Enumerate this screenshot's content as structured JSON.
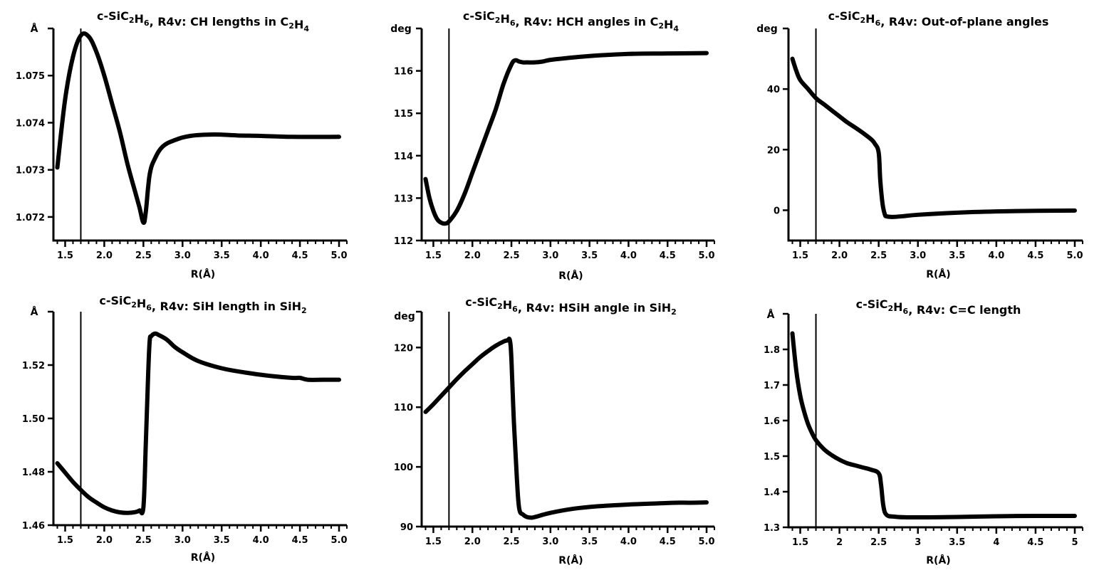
{
  "chart_data": [
    {
      "type": "line",
      "title": "c-SiC2H6, R4v: CH lengths in C2H4",
      "title_parts": [
        {
          "t": "c-SiC"
        },
        {
          "t": "2",
          "s": "sub"
        },
        {
          "t": "H"
        },
        {
          "t": "6",
          "s": "sub"
        },
        {
          "t": ", R4v: CH lengths in C"
        },
        {
          "t": "2",
          "s": "sub"
        },
        {
          "t": "H"
        },
        {
          "t": "4",
          "s": "sub"
        }
      ],
      "xlabel": "R(Å)",
      "ylabel": "Å",
      "xlim": [
        1.35,
        5.1
      ],
      "ylim": [
        1.0715,
        1.076
      ],
      "xticks": [
        1.5,
        2.0,
        2.5,
        3.0,
        3.5,
        4.0,
        4.5,
        5.0
      ],
      "xtick_labels": [
        "1.5",
        "2.0",
        "2.5",
        "3.0",
        "3.5",
        "4.0",
        "4.5",
        "5.0"
      ],
      "xminor": 0.1,
      "yticks": [
        1.072,
        1.073,
        1.074,
        1.075
      ],
      "ytick_labels": [
        "1.072",
        "1.073",
        "1.074",
        "1.075"
      ],
      "vline_x": 1.7,
      "series": [
        {
          "name": "CH length",
          "x": [
            1.4,
            1.5,
            1.6,
            1.7,
            1.8,
            1.9,
            2.0,
            2.1,
            2.2,
            2.3,
            2.4,
            2.45,
            2.5,
            2.53,
            2.58,
            2.65,
            2.75,
            2.9,
            3.1,
            3.4,
            3.7,
            4.0,
            4.4,
            5.0
          ],
          "y": [
            1.07305,
            1.0745,
            1.0754,
            1.07585,
            1.07583,
            1.0755,
            1.075,
            1.0744,
            1.0738,
            1.0731,
            1.0725,
            1.0722,
            1.07188,
            1.0721,
            1.0729,
            1.07325,
            1.0735,
            1.07363,
            1.07372,
            1.07375,
            1.07373,
            1.07372,
            1.0737,
            1.0737
          ]
        }
      ]
    },
    {
      "type": "line",
      "title": "c-SiC2H6, R4v: HCH angles in C2H4",
      "title_parts": [
        {
          "t": "c-SiC"
        },
        {
          "t": "2",
          "s": "sub"
        },
        {
          "t": "H"
        },
        {
          "t": "6",
          "s": "sub"
        },
        {
          "t": ", R4v: HCH angles in C"
        },
        {
          "t": "2",
          "s": "sub"
        },
        {
          "t": "H"
        },
        {
          "t": "4",
          "s": "sub"
        }
      ],
      "xlabel": "R(Å)",
      "ylabel": "deg",
      "xlim": [
        1.35,
        5.1
      ],
      "ylim": [
        112,
        117
      ],
      "xticks": [
        1.5,
        2.0,
        2.5,
        3.0,
        3.5,
        4.0,
        4.5,
        5.0
      ],
      "xtick_labels": [
        "1.5",
        "2.0",
        "2.5",
        "3.0",
        "3.5",
        "4.0",
        "4.5",
        "5.0"
      ],
      "xminor": 0.1,
      "yticks": [
        112,
        113,
        114,
        115,
        116
      ],
      "ytick_labels": [
        "112",
        "113",
        "114",
        "115",
        "116"
      ],
      "vline_x": 1.7,
      "series": [
        {
          "name": "HCH angle",
          "x": [
            1.4,
            1.45,
            1.5,
            1.55,
            1.6,
            1.65,
            1.7,
            1.8,
            1.9,
            2.0,
            2.1,
            2.2,
            2.3,
            2.4,
            2.5,
            2.55,
            2.6,
            2.65,
            2.7,
            2.8,
            2.9,
            3.0,
            3.2,
            3.5,
            4.0,
            4.5,
            5.0
          ],
          "y": [
            113.45,
            113.0,
            112.7,
            112.5,
            112.42,
            112.4,
            112.45,
            112.7,
            113.1,
            113.6,
            114.1,
            114.6,
            115.1,
            115.7,
            116.15,
            116.25,
            116.22,
            116.2,
            116.2,
            116.2,
            116.22,
            116.26,
            116.3,
            116.35,
            116.4,
            116.41,
            116.42
          ]
        }
      ]
    },
    {
      "type": "line",
      "title": "c-SiC2H6, R4v: Out-of-plane angles",
      "title_parts": [
        {
          "t": "c-SiC"
        },
        {
          "t": "2",
          "s": "sub"
        },
        {
          "t": "H"
        },
        {
          "t": "6",
          "s": "sub"
        },
        {
          "t": ", R4v: Out-of-plane angles"
        }
      ],
      "xlabel": "R(Å)",
      "ylabel": "deg",
      "xlim": [
        1.35,
        5.1
      ],
      "ylim": [
        -10,
        60
      ],
      "xticks": [
        1.5,
        2.0,
        2.5,
        3.0,
        3.5,
        4.0,
        4.5,
        5.0
      ],
      "xtick_labels": [
        "1.5",
        "2.0",
        "2.5",
        "3.0",
        "3.5",
        "4.0",
        "4.5",
        "5.0"
      ],
      "xminor": 0.1,
      "yticks": [
        0,
        20,
        40
      ],
      "ytick_labels": [
        "0",
        "20",
        "40"
      ],
      "vline_x": 1.7,
      "series": [
        {
          "name": "Out-of-plane angle",
          "x": [
            1.4,
            1.45,
            1.5,
            1.6,
            1.7,
            1.8,
            1.9,
            2.0,
            2.1,
            2.2,
            2.3,
            2.4,
            2.45,
            2.5,
            2.52,
            2.55,
            2.58,
            2.6,
            2.65,
            2.7,
            2.8,
            3.0,
            3.5,
            4.0,
            4.5,
            5.0
          ],
          "y": [
            50,
            46,
            43,
            40,
            37,
            35,
            33,
            31,
            29,
            27.3,
            25.5,
            23.5,
            22,
            19,
            10,
            2,
            -1.5,
            -2,
            -2.2,
            -2.2,
            -2,
            -1.5,
            -0.8,
            -0.4,
            -0.2,
            -0.1
          ]
        }
      ]
    },
    {
      "type": "line",
      "title": "c-SiC2H6, R4v: SiH length in SiH2",
      "title_parts": [
        {
          "t": "c-SiC"
        },
        {
          "t": "2",
          "s": "sub"
        },
        {
          "t": "H"
        },
        {
          "t": "6",
          "s": "sub"
        },
        {
          "t": ", R4v: SiH length in SiH"
        },
        {
          "t": "2",
          "s": "sub"
        }
      ],
      "xlabel": "R(Å)",
      "ylabel": "Å",
      "xlim": [
        1.35,
        5.1
      ],
      "ylim": [
        1.46,
        1.54
      ],
      "xticks": [
        1.5,
        2.0,
        2.5,
        3.0,
        3.5,
        4.0,
        4.5,
        5.0
      ],
      "xtick_labels": [
        "1.5",
        "2.0",
        "2.5",
        "3.0",
        "3.5",
        "4.0",
        "4.5",
        "5.0"
      ],
      "xminor": 0.1,
      "yticks": [
        1.46,
        1.48,
        1.5,
        1.52
      ],
      "ytick_labels": [
        "1.46",
        "1.48",
        "1.50",
        "1.52"
      ],
      "vline_x": 1.7,
      "series": [
        {
          "name": "SiH length",
          "x": [
            1.4,
            1.5,
            1.6,
            1.7,
            1.8,
            1.9,
            2.0,
            2.1,
            2.2,
            2.3,
            2.4,
            2.45,
            2.5,
            2.53,
            2.56,
            2.58,
            2.6,
            2.65,
            2.7,
            2.8,
            2.9,
            3.0,
            3.2,
            3.5,
            3.8,
            4.1,
            4.4,
            4.5,
            4.6,
            4.8,
            5.0
          ],
          "y": [
            1.4832,
            1.4797,
            1.4762,
            1.4732,
            1.4705,
            1.4685,
            1.4667,
            1.4655,
            1.4648,
            1.4646,
            1.4649,
            1.4655,
            1.4667,
            1.49,
            1.516,
            1.529,
            1.5308,
            1.5318,
            1.5312,
            1.5295,
            1.5268,
            1.5248,
            1.5215,
            1.5188,
            1.5172,
            1.516,
            1.5152,
            1.5152,
            1.5145,
            1.5145,
            1.5145
          ]
        }
      ]
    },
    {
      "type": "line",
      "title": "c-SiC2H6, R4v: HSiH angle in SiH2",
      "title_parts": [
        {
          "t": "c-SiC"
        },
        {
          "t": "2",
          "s": "sub"
        },
        {
          "t": "H"
        },
        {
          "t": "6",
          "s": "sub"
        },
        {
          "t": ", R4v: HSiH angle in SiH"
        },
        {
          "t": "2",
          "s": "sub"
        }
      ],
      "xlabel": "R(Å)",
      "ylabel": "deg",
      "xlim": [
        1.35,
        5.1
      ],
      "ylim": [
        90,
        126
      ],
      "xticks": [
        1.5,
        2.0,
        2.5,
        3.0,
        3.5,
        4.0,
        4.5,
        5.0
      ],
      "xtick_labels": [
        "1.5",
        "2.0",
        "2.5",
        "3.0",
        "3.5",
        "4.0",
        "4.5",
        "5.0"
      ],
      "xminor": 0.1,
      "yticks": [
        90,
        100,
        110,
        120
      ],
      "ytick_labels": [
        "90",
        "100",
        "110",
        "120"
      ],
      "vline_x": 1.7,
      "series": [
        {
          "name": "HSiH angle",
          "x": [
            1.4,
            1.5,
            1.6,
            1.7,
            1.8,
            1.9,
            2.0,
            2.1,
            2.2,
            2.3,
            2.4,
            2.45,
            2.48,
            2.5,
            2.53,
            2.57,
            2.6,
            2.65,
            2.7,
            2.75,
            2.8,
            3.0,
            3.3,
            3.6,
            4.0,
            4.4,
            4.6,
            4.8,
            5.0
          ],
          "y": [
            109.2,
            110.5,
            111.9,
            113.3,
            114.7,
            116.0,
            117.2,
            118.4,
            119.4,
            120.3,
            121.0,
            121.2,
            121.2,
            118,
            108,
            98,
            93,
            92,
            91.6,
            91.5,
            91.6,
            92.3,
            93.0,
            93.4,
            93.7,
            93.9,
            94.0,
            94.0,
            94.05
          ]
        }
      ]
    },
    {
      "type": "line",
      "title": "c-SiC2H6, R4v: C=C length",
      "title_parts": [
        {
          "t": "c-SiC"
        },
        {
          "t": "2",
          "s": "sub"
        },
        {
          "t": "H"
        },
        {
          "t": "6",
          "s": "sub"
        },
        {
          "t": ", R4v: C=C length"
        }
      ],
      "xlabel": "R(Å)",
      "ylabel": "Å",
      "xlim": [
        1.35,
        5.1
      ],
      "ylim": [
        1.3,
        1.9
      ],
      "xticks": [
        1.5,
        2,
        2.5,
        3,
        3.5,
        4,
        4.5,
        5
      ],
      "xtick_labels": [
        "1.5",
        "2",
        "2.5",
        "3",
        "3.5",
        "4",
        "4.5",
        "5"
      ],
      "xminor": 0.1,
      "yticks": [
        1.3,
        1.4,
        1.5,
        1.6,
        1.7,
        1.8
      ],
      "ytick_labels": [
        "1.3",
        "1.4",
        "1.5",
        "1.6",
        "1.7",
        "1.8"
      ],
      "vline_x": 1.7,
      "series": [
        {
          "name": "C=C length",
          "x": [
            1.4,
            1.45,
            1.5,
            1.55,
            1.6,
            1.65,
            1.7,
            1.8,
            1.9,
            2.0,
            2.1,
            2.2,
            2.3,
            2.4,
            2.5,
            2.53,
            2.56,
            2.6,
            2.7,
            2.9,
            3.5,
            4.0,
            4.5,
            5.0
          ],
          "y": [
            1.845,
            1.74,
            1.67,
            1.625,
            1.59,
            1.565,
            1.545,
            1.52,
            1.503,
            1.49,
            1.48,
            1.474,
            1.468,
            1.462,
            1.452,
            1.42,
            1.36,
            1.335,
            1.33,
            1.328,
            1.329,
            1.331,
            1.332,
            1.332
          ]
        }
      ]
    }
  ]
}
